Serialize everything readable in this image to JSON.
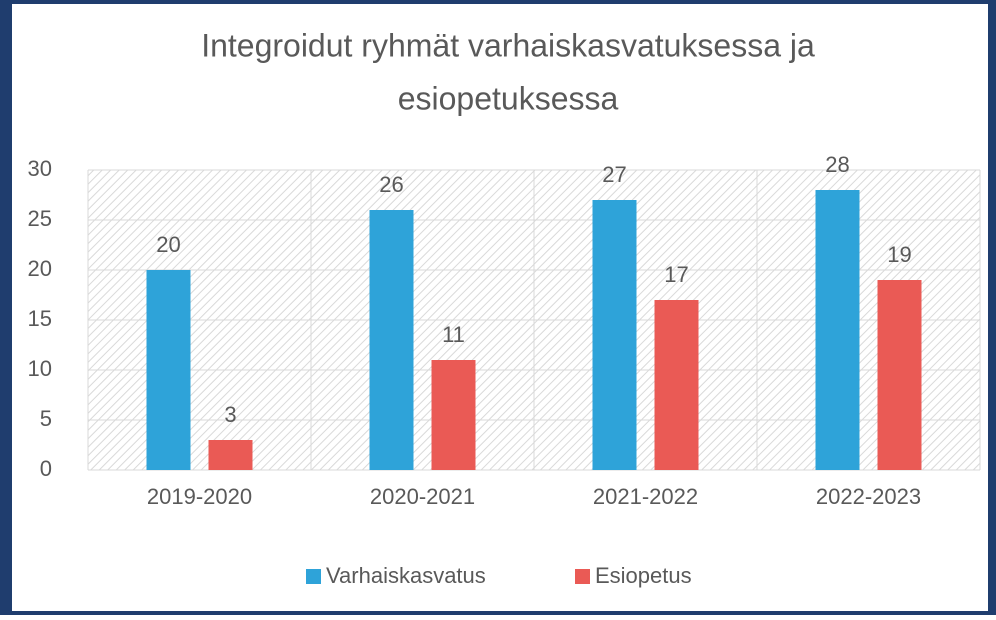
{
  "chart_data": {
    "type": "bar",
    "title": [
      "Integroidut ryhmät varhaiskasvatuksessa ja",
      "esiopetuksessa"
    ],
    "categories": [
      "2019-2020",
      "2020-2021",
      "2021-2022",
      "2022-2023"
    ],
    "series": [
      {
        "name": "Varhaiskasvatus",
        "color": "#2ea3d9",
        "values": [
          20,
          26,
          27,
          28
        ]
      },
      {
        "name": "Esiopetus",
        "color": "#ea5a55",
        "values": [
          3,
          11,
          17,
          19
        ]
      }
    ],
    "ylim": [
      0,
      30
    ],
    "yticks": [
      0,
      5,
      10,
      15,
      20,
      25,
      30
    ],
    "grid": true,
    "legend": "bottom"
  }
}
